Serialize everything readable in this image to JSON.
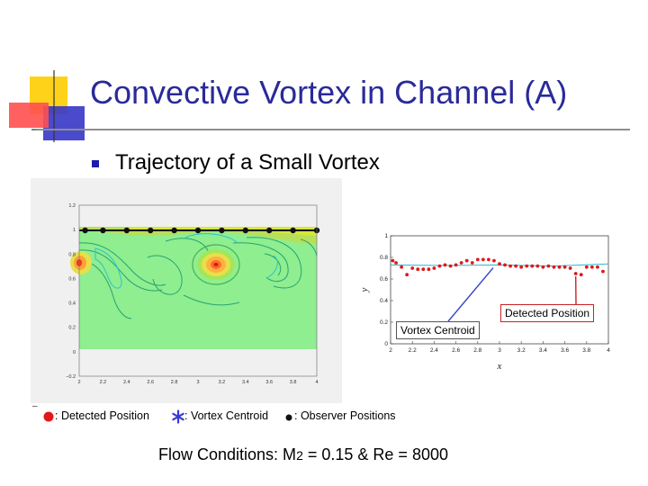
{
  "slide": {
    "title": "Convective Vortex in Channel (A)",
    "bullet": "Trajectory of a Small Vortex",
    "flow_conditions": {
      "prefix": "Flow Conditions: M",
      "subscript": "2",
      "suffix": " = 0.15 & Re = 8000"
    },
    "legend": {
      "detected": ": Detected Position",
      "centroid": ": Vortex Centroid",
      "observer": ": Observer Positions",
      "dash": "–"
    },
    "colors": {
      "title": "#2a2a9a",
      "detected": "#e01818",
      "centroid": "#3a3ad6",
      "callout_border_red": "#cc2222",
      "arrow_blue": "#3344cc",
      "fluid_green": "#88ee8a"
    }
  },
  "contour_plot": {
    "x_ticks": [
      "2",
      "2.2",
      "2.4",
      "2.6",
      "2.8",
      "3",
      "3.2",
      "3.4",
      "3.6",
      "3.8",
      "4"
    ],
    "y_ticks": [
      "1.2",
      "1",
      "0.8",
      "0.6",
      "0.4",
      "0.2",
      "0",
      "−0.2"
    ],
    "observer_positions_x": [
      2.05,
      2.2,
      2.4,
      2.6,
      2.8,
      3.0,
      3.2,
      3.4,
      3.6,
      3.8,
      4.0
    ],
    "vortices": [
      {
        "x": 3.05,
        "y": 0.78,
        "icon": "vortex-core"
      },
      {
        "x": 2.0,
        "y": 0.77,
        "icon": "vortex-core"
      }
    ]
  },
  "chart_data": {
    "type": "scatter",
    "xlabel": "x",
    "ylabel": "y",
    "xlim": [
      2,
      4
    ],
    "ylim": [
      0,
      1
    ],
    "x_ticks": [
      "2",
      "2.2",
      "2.4",
      "2.6",
      "2.8",
      "3",
      "3.2",
      "3.4",
      "3.6",
      "3.8",
      "4"
    ],
    "y_ticks": [
      "0",
      "0.2",
      "0.4",
      "0.6",
      "0.8",
      "1"
    ],
    "series": [
      {
        "name": "Detected Position",
        "x": [
          2.02,
          2.05,
          2.1,
          2.15,
          2.2,
          2.25,
          2.3,
          2.35,
          2.4,
          2.45,
          2.5,
          2.55,
          2.6,
          2.65,
          2.7,
          2.75,
          2.8,
          2.85,
          2.9,
          2.95,
          3.0,
          3.05,
          3.1,
          3.15,
          3.2,
          3.25,
          3.3,
          3.35,
          3.4,
          3.45,
          3.5,
          3.55,
          3.6,
          3.65,
          3.7,
          3.75,
          3.8,
          3.85,
          3.9,
          3.95
        ],
        "y": [
          0.77,
          0.75,
          0.71,
          0.64,
          0.7,
          0.69,
          0.69,
          0.69,
          0.7,
          0.72,
          0.73,
          0.72,
          0.73,
          0.75,
          0.77,
          0.75,
          0.78,
          0.78,
          0.78,
          0.77,
          0.74,
          0.73,
          0.72,
          0.72,
          0.71,
          0.72,
          0.72,
          0.72,
          0.71,
          0.72,
          0.71,
          0.71,
          0.71,
          0.7,
          0.65,
          0.64,
          0.71,
          0.71,
          0.71,
          0.67
        ]
      },
      {
        "name": "Vortex Centroid",
        "x": [
          2.0,
          2.5,
          3.0,
          3.5,
          4.0
        ],
        "y": [
          0.73,
          0.725,
          0.73,
          0.72,
          0.74
        ]
      }
    ],
    "annotations": [
      {
        "text": "Detected Position",
        "target_x": 3.7,
        "target_y": 0.65
      },
      {
        "text": "Vortex Centroid",
        "target_x": 2.95,
        "target_y": 0.72
      }
    ]
  }
}
